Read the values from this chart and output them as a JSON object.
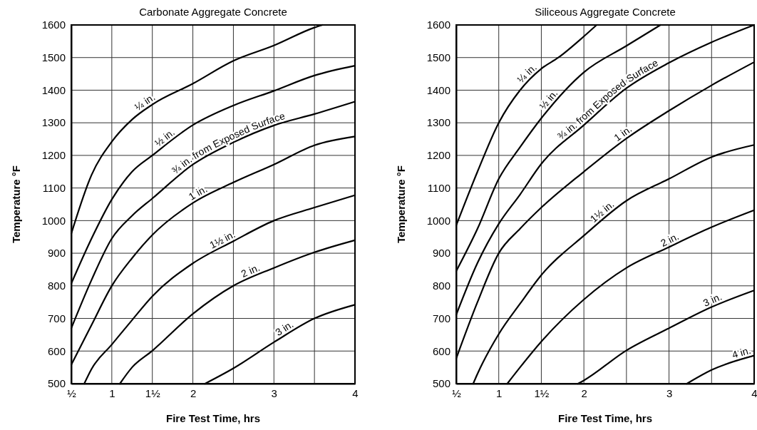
{
  "chart_data": [
    {
      "type": "line",
      "title": "Carbonate Aggregate Concrete",
      "xlabel": "Fire Test Time, hrs",
      "ylabel": "Temperature °F",
      "xlim": [
        0.5,
        4
      ],
      "xticks": [
        {
          "value": 0.5,
          "label": "½"
        },
        1,
        {
          "value": 1.5,
          "label": "1½"
        },
        2,
        {
          "value": 2.5,
          "label": null
        },
        3,
        {
          "value": 3.5,
          "label": null
        },
        4
      ],
      "ylim": [
        500,
        1600
      ],
      "yticks": [
        500,
        600,
        700,
        800,
        900,
        1000,
        1100,
        1200,
        1300,
        1400,
        1500,
        1600
      ],
      "grid": true,
      "series": [
        {
          "name": "¼ in.",
          "color": "#000000",
          "x": [
            0.5,
            0.75,
            1,
            1.25,
            1.5,
            2,
            2.5,
            3,
            3.5,
            3.6
          ],
          "values": [
            960,
            1140,
            1242,
            1310,
            1356,
            1420,
            1490,
            1537,
            1592,
            1600
          ]
        },
        {
          "name": "½ in.",
          "color": "#000000",
          "x": [
            0.5,
            0.75,
            1,
            1.25,
            1.5,
            2,
            2.5,
            3,
            3.5,
            4
          ],
          "values": [
            807,
            945,
            1065,
            1150,
            1200,
            1293,
            1353,
            1398,
            1445,
            1475
          ]
        },
        {
          "name": "¾ in. from Exposed Surface",
          "color": "#000000",
          "x": [
            0.5,
            0.75,
            1,
            1.25,
            1.5,
            2,
            2.5,
            3,
            3.5,
            4
          ],
          "values": [
            670,
            818,
            945,
            1015,
            1068,
            1172,
            1240,
            1292,
            1327,
            1365
          ]
        },
        {
          "name": "1 in.",
          "color": "#000000",
          "x": [
            0.5,
            0.75,
            1,
            1.25,
            1.5,
            2,
            2.5,
            3,
            3.5,
            4
          ],
          "values": [
            558,
            680,
            800,
            885,
            956,
            1054,
            1117,
            1172,
            1231,
            1258
          ]
        },
        {
          "name": "1½ in.",
          "color": "#000000",
          "x": [
            0.66,
            0.75,
            1,
            1.25,
            1.5,
            2,
            2.5,
            3,
            3.5,
            4
          ],
          "values": [
            500,
            545,
            620,
            695,
            768,
            869,
            937,
            1000,
            1040,
            1078
          ]
        },
        {
          "name": "2 in.",
          "color": "#000000",
          "x": [
            1.1,
            1.25,
            1.5,
            2,
            2.5,
            3,
            3.5,
            4
          ],
          "values": [
            500,
            550,
            601,
            714,
            800,
            855,
            903,
            940
          ]
        },
        {
          "name": "3 in.",
          "color": "#000000",
          "x": [
            2.15,
            2.5,
            3,
            3.5,
            4
          ],
          "values": [
            500,
            547,
            627,
            700,
            742
          ]
        }
      ]
    },
    {
      "type": "line",
      "title": "Siliceous Aggregate Concrete",
      "xlabel": "Fire Test Time, hrs",
      "ylabel": "Temperature °F",
      "xlim": [
        0.5,
        4
      ],
      "xticks": [
        {
          "value": 0.5,
          "label": "½"
        },
        1,
        {
          "value": 1.5,
          "label": "1½"
        },
        2,
        {
          "value": 2.5,
          "label": null
        },
        3,
        {
          "value": 3.5,
          "label": null
        },
        4
      ],
      "ylim": [
        500,
        1600
      ],
      "yticks": [
        500,
        600,
        700,
        800,
        900,
        1000,
        1100,
        1200,
        1300,
        1400,
        1500,
        1600
      ],
      "grid": true,
      "series": [
        {
          "name": "¼ in.",
          "color": "#000000",
          "x": [
            0.5,
            0.75,
            1,
            1.25,
            1.5,
            1.7,
            2,
            2.15
          ],
          "values": [
            985,
            1150,
            1300,
            1400,
            1466,
            1500,
            1565,
            1600
          ]
        },
        {
          "name": "½ in.",
          "color": "#000000",
          "x": [
            0.5,
            0.75,
            1,
            1.25,
            1.5,
            2,
            2.5,
            2.9
          ],
          "values": [
            845,
            975,
            1128,
            1225,
            1314,
            1455,
            1536,
            1600
          ]
        },
        {
          "name": "¾ in. from Exposed Surface",
          "color": "#000000",
          "x": [
            0.5,
            0.75,
            1,
            1.25,
            1.5,
            2,
            2.5,
            3,
            3.5,
            4
          ],
          "values": [
            711,
            870,
            990,
            1080,
            1174,
            1293,
            1406,
            1484,
            1547,
            1600
          ]
        },
        {
          "name": "1 in.",
          "color": "#000000",
          "x": [
            0.5,
            0.75,
            1,
            1.25,
            1.5,
            2,
            2.5,
            3,
            3.5,
            4
          ],
          "values": [
            577,
            750,
            900,
            975,
            1040,
            1150,
            1252,
            1337,
            1415,
            1486
          ]
        },
        {
          "name": "1½ in.",
          "color": "#000000",
          "x": [
            0.7,
            0.75,
            1,
            1.25,
            1.5,
            2,
            2.5,
            3,
            3.5,
            4
          ],
          "values": [
            500,
            530,
            652,
            745,
            833,
            954,
            1061,
            1128,
            1195,
            1232
          ]
        },
        {
          "name": "2 in.",
          "color": "#000000",
          "x": [
            1.1,
            1.25,
            1.5,
            2,
            2.5,
            3,
            3.5,
            4
          ],
          "values": [
            500,
            550,
            629,
            758,
            855,
            919,
            980,
            1032
          ]
        },
        {
          "name": "3 in.",
          "color": "#000000",
          "x": [
            1.93,
            2,
            2.5,
            3,
            3.5,
            4
          ],
          "values": [
            500,
            510,
            602,
            670,
            735,
            786
          ]
        },
        {
          "name": "4 in.",
          "color": "#000000",
          "x": [
            3.21,
            3.5,
            4
          ],
          "values": [
            500,
            542,
            586
          ]
        }
      ]
    }
  ]
}
